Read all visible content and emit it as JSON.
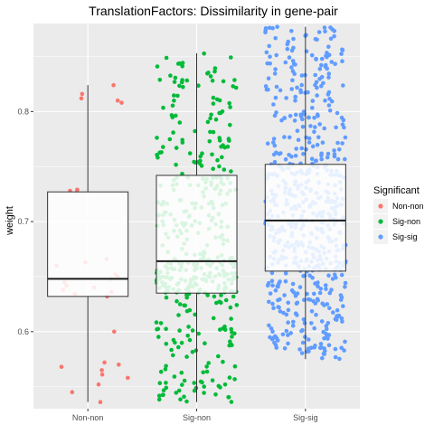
{
  "chart_data": {
    "type": "box",
    "title": "TranslationFactors: Dissimilarity in gene-pair",
    "xlabel": "",
    "ylabel": "weight",
    "ylim": [
      0.53,
      0.88
    ],
    "yticks": [
      0.6,
      0.7,
      0.8
    ],
    "ytick_labels": [
      "0.6",
      "0.7",
      "0.8"
    ],
    "categories": [
      "Non-non",
      "Sig-non",
      "Sig-sig"
    ],
    "grid": true,
    "legend": {
      "title": "Significant",
      "position": "right"
    },
    "colors": {
      "Non-non": "#F8766D",
      "Sig-non": "#00BA38",
      "Sig-sig": "#619CFF"
    },
    "boxes": [
      {
        "category": "Non-non",
        "lower_whisker": 0.536,
        "q1": 0.632,
        "median": 0.648,
        "q3": 0.727,
        "upper_whisker": 0.824
      },
      {
        "category": "Sig-non",
        "lower_whisker": 0.536,
        "q1": 0.635,
        "median": 0.664,
        "q3": 0.742,
        "upper_whisker": 0.853
      },
      {
        "category": "Sig-sig",
        "lower_whisker": 0.575,
        "q1": 0.655,
        "median": 0.701,
        "q3": 0.752,
        "upper_whisker": 0.877
      }
    ],
    "points": {
      "Non-non": [
        0.536,
        0.545,
        0.552,
        0.558,
        0.561,
        0.565,
        0.568,
        0.57,
        0.572,
        0.6,
        0.632,
        0.634,
        0.636,
        0.638,
        0.64,
        0.642,
        0.645,
        0.648,
        0.65,
        0.652,
        0.66,
        0.663,
        0.666,
        0.727,
        0.728,
        0.729,
        0.808,
        0.81,
        0.812,
        0.816,
        0.824
      ],
      "Sig-non": {
        "n": 430,
        "min": 0.536,
        "max": 0.853
      },
      "Sig-sig": {
        "n": 620,
        "min": 0.575,
        "max": 0.877
      }
    }
  }
}
